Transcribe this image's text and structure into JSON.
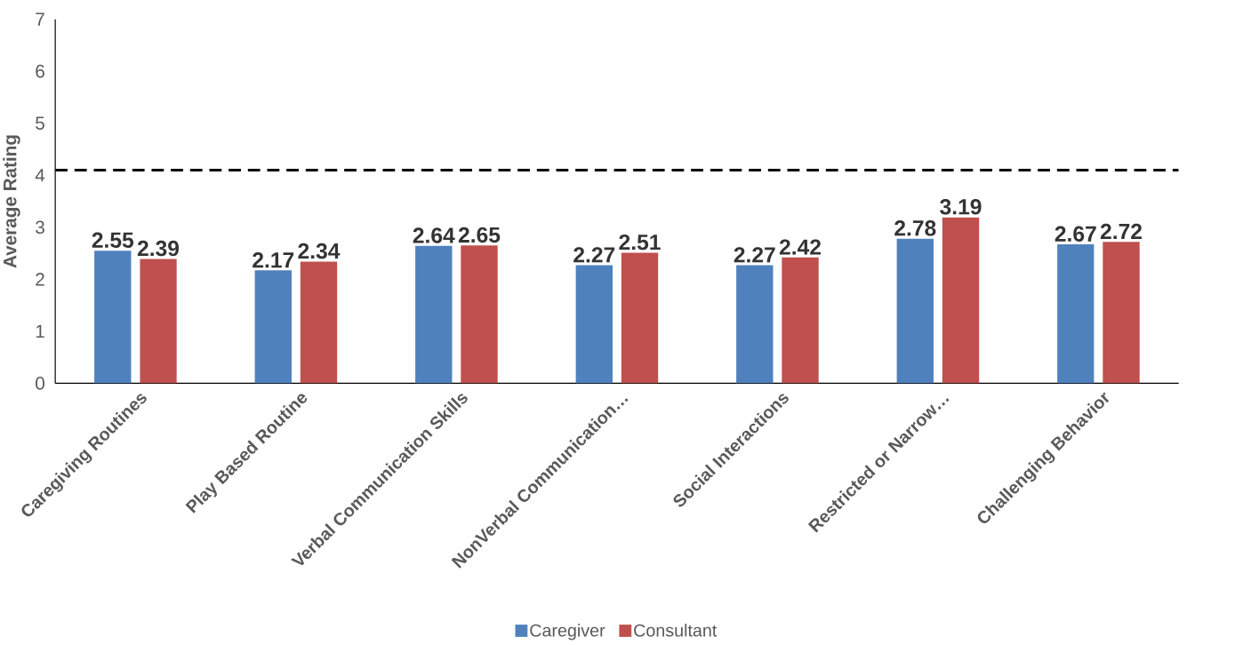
{
  "chart_data": {
    "type": "bar",
    "ylabel": "Average Rating",
    "categories": [
      "Caregiving Routines",
      "Play Based Routine",
      "Verbal Communication Skills",
      "NonVerbal Communication…",
      "Social Interactions",
      "Restricted or Narrow…",
      "Challenging Behavior"
    ],
    "series": [
      {
        "name": "Caregiver",
        "color": "#4f81bd",
        "values": [
          2.55,
          2.17,
          2.64,
          2.27,
          2.27,
          2.78,
          2.67
        ]
      },
      {
        "name": "Consultant",
        "color": "#c0504d",
        "values": [
          2.39,
          2.34,
          2.65,
          2.51,
          2.42,
          3.19,
          2.72
        ]
      }
    ],
    "ylim": [
      0,
      7
    ],
    "yticks": [
      0,
      1,
      2,
      3,
      4,
      5,
      6,
      7
    ],
    "ref_lines": [
      {
        "axis": "y",
        "value": 4.1,
        "color": "#000000",
        "line_style": "dashed"
      }
    ],
    "data_labels": true,
    "legend": "bottom",
    "grid": false
  }
}
